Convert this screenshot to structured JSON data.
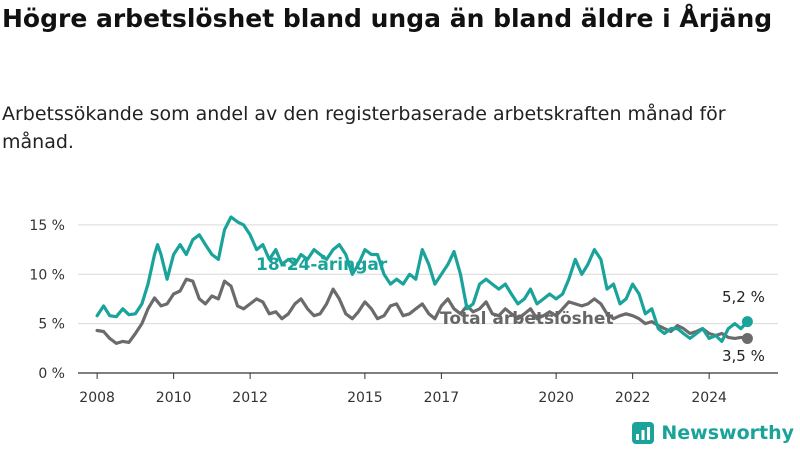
{
  "title": "Högre arbetslöshet bland unga än bland äldre i Årjäng",
  "subtitle": "Arbetssökande som andel av den registerbaserade arbetskraften månad för månad.",
  "brand": {
    "name": "Newsworthy",
    "icon": "newsworthy-logo-icon"
  },
  "colors": {
    "youth": "#1aa39a",
    "total": "#6b6b6b",
    "grid": "#d9d9d9",
    "brand": "#1aa39a"
  },
  "chart_data": {
    "type": "line",
    "x_unit": "year (decimal)",
    "y_unit": "%",
    "xlim": [
      2007.5,
      2025.8
    ],
    "ylim": [
      0,
      16
    ],
    "x_ticks": [
      2008,
      2010,
      2012,
      2015,
      2017,
      2020,
      2022,
      2024
    ],
    "x_tick_labels": [
      "2008",
      "2010",
      "2012",
      "2015",
      "2017",
      "2020",
      "2022",
      "2024"
    ],
    "y_ticks": [
      0,
      5,
      10,
      15
    ],
    "y_tick_labels": [
      "0 %",
      "5 %",
      "10 %",
      "15 %"
    ],
    "grid": "horizontal",
    "series": [
      {
        "name": "18-24-åringar",
        "end_label": "5,2 %",
        "points": [
          [
            2008.0,
            5.8
          ],
          [
            2008.17,
            6.8
          ],
          [
            2008.33,
            5.8
          ],
          [
            2008.5,
            5.7
          ],
          [
            2008.67,
            6.5
          ],
          [
            2008.83,
            5.9
          ],
          [
            2009.0,
            6.0
          ],
          [
            2009.17,
            7.0
          ],
          [
            2009.33,
            9.0
          ],
          [
            2009.5,
            12.0
          ],
          [
            2009.58,
            13.0
          ],
          [
            2009.67,
            12.0
          ],
          [
            2009.83,
            9.5
          ],
          [
            2010.0,
            12.0
          ],
          [
            2010.17,
            13.0
          ],
          [
            2010.33,
            12.0
          ],
          [
            2010.5,
            13.5
          ],
          [
            2010.67,
            14.0
          ],
          [
            2010.83,
            13.0
          ],
          [
            2011.0,
            12.0
          ],
          [
            2011.17,
            11.5
          ],
          [
            2011.33,
            14.5
          ],
          [
            2011.5,
            15.8
          ],
          [
            2011.67,
            15.3
          ],
          [
            2011.83,
            15.0
          ],
          [
            2012.0,
            14.0
          ],
          [
            2012.17,
            12.5
          ],
          [
            2012.33,
            13.0
          ],
          [
            2012.5,
            11.5
          ],
          [
            2012.67,
            12.5
          ],
          [
            2012.83,
            11.0
          ],
          [
            2013.0,
            11.5
          ],
          [
            2013.17,
            11.0
          ],
          [
            2013.33,
            12.0
          ],
          [
            2013.5,
            11.5
          ],
          [
            2013.67,
            12.5
          ],
          [
            2013.83,
            12.0
          ],
          [
            2014.0,
            11.5
          ],
          [
            2014.17,
            12.5
          ],
          [
            2014.33,
            13.0
          ],
          [
            2014.5,
            12.0
          ],
          [
            2014.67,
            10.0
          ],
          [
            2014.83,
            11.0
          ],
          [
            2015.0,
            12.5
          ],
          [
            2015.17,
            12.0
          ],
          [
            2015.33,
            12.0
          ],
          [
            2015.5,
            10.0
          ],
          [
            2015.67,
            9.0
          ],
          [
            2015.83,
            9.5
          ],
          [
            2016.0,
            9.0
          ],
          [
            2016.17,
            10.0
          ],
          [
            2016.33,
            9.5
          ],
          [
            2016.5,
            12.5
          ],
          [
            2016.67,
            11.0
          ],
          [
            2016.83,
            9.0
          ],
          [
            2017.0,
            10.0
          ],
          [
            2017.17,
            11.0
          ],
          [
            2017.33,
            12.3
          ],
          [
            2017.5,
            10.0
          ],
          [
            2017.67,
            6.5
          ],
          [
            2017.83,
            7.0
          ],
          [
            2018.0,
            9.0
          ],
          [
            2018.17,
            9.5
          ],
          [
            2018.33,
            9.0
          ],
          [
            2018.5,
            8.5
          ],
          [
            2018.67,
            9.0
          ],
          [
            2018.83,
            8.0
          ],
          [
            2019.0,
            7.0
          ],
          [
            2019.17,
            7.5
          ],
          [
            2019.33,
            8.5
          ],
          [
            2019.5,
            7.0
          ],
          [
            2019.67,
            7.5
          ],
          [
            2019.83,
            8.0
          ],
          [
            2020.0,
            7.5
          ],
          [
            2020.17,
            8.0
          ],
          [
            2020.33,
            9.5
          ],
          [
            2020.5,
            11.5
          ],
          [
            2020.67,
            10.0
          ],
          [
            2020.83,
            11.0
          ],
          [
            2021.0,
            12.5
          ],
          [
            2021.17,
            11.5
          ],
          [
            2021.33,
            8.5
          ],
          [
            2021.5,
            9.0
          ],
          [
            2021.67,
            7.0
          ],
          [
            2021.83,
            7.5
          ],
          [
            2022.0,
            9.0
          ],
          [
            2022.17,
            8.0
          ],
          [
            2022.33,
            6.0
          ],
          [
            2022.5,
            6.5
          ],
          [
            2022.67,
            4.5
          ],
          [
            2022.83,
            4.0
          ],
          [
            2023.0,
            4.5
          ],
          [
            2023.17,
            4.5
          ],
          [
            2023.33,
            4.0
          ],
          [
            2023.5,
            3.5
          ],
          [
            2023.67,
            4.0
          ],
          [
            2023.83,
            4.5
          ],
          [
            2024.0,
            3.5
          ],
          [
            2024.17,
            3.8
          ],
          [
            2024.33,
            3.2
          ],
          [
            2024.5,
            4.5
          ],
          [
            2024.67,
            5.0
          ],
          [
            2024.83,
            4.5
          ],
          [
            2025.0,
            5.2
          ]
        ]
      },
      {
        "name": "Total arbetslöshet",
        "end_label": "3,5 %",
        "points": [
          [
            2008.0,
            4.3
          ],
          [
            2008.17,
            4.2
          ],
          [
            2008.33,
            3.5
          ],
          [
            2008.5,
            3.0
          ],
          [
            2008.67,
            3.2
          ],
          [
            2008.83,
            3.1
          ],
          [
            2009.0,
            4.0
          ],
          [
            2009.17,
            5.0
          ],
          [
            2009.33,
            6.5
          ],
          [
            2009.5,
            7.6
          ],
          [
            2009.67,
            6.8
          ],
          [
            2009.83,
            7.0
          ],
          [
            2010.0,
            8.0
          ],
          [
            2010.17,
            8.3
          ],
          [
            2010.33,
            9.5
          ],
          [
            2010.5,
            9.3
          ],
          [
            2010.67,
            7.5
          ],
          [
            2010.83,
            7.0
          ],
          [
            2011.0,
            7.8
          ],
          [
            2011.17,
            7.5
          ],
          [
            2011.33,
            9.3
          ],
          [
            2011.5,
            8.8
          ],
          [
            2011.67,
            6.8
          ],
          [
            2011.83,
            6.5
          ],
          [
            2012.0,
            7.0
          ],
          [
            2012.17,
            7.5
          ],
          [
            2012.33,
            7.2
          ],
          [
            2012.5,
            6.0
          ],
          [
            2012.67,
            6.2
          ],
          [
            2012.83,
            5.5
          ],
          [
            2013.0,
            6.0
          ],
          [
            2013.17,
            7.0
          ],
          [
            2013.33,
            7.5
          ],
          [
            2013.5,
            6.5
          ],
          [
            2013.67,
            5.8
          ],
          [
            2013.83,
            6.0
          ],
          [
            2014.0,
            7.0
          ],
          [
            2014.17,
            8.5
          ],
          [
            2014.33,
            7.5
          ],
          [
            2014.5,
            6.0
          ],
          [
            2014.67,
            5.5
          ],
          [
            2014.83,
            6.2
          ],
          [
            2015.0,
            7.2
          ],
          [
            2015.17,
            6.5
          ],
          [
            2015.33,
            5.5
          ],
          [
            2015.5,
            5.8
          ],
          [
            2015.67,
            6.8
          ],
          [
            2015.83,
            7.0
          ],
          [
            2016.0,
            5.8
          ],
          [
            2016.17,
            6.0
          ],
          [
            2016.33,
            6.5
          ],
          [
            2016.5,
            7.0
          ],
          [
            2016.67,
            6.0
          ],
          [
            2016.83,
            5.5
          ],
          [
            2017.0,
            6.8
          ],
          [
            2017.17,
            7.5
          ],
          [
            2017.33,
            6.5
          ],
          [
            2017.5,
            6.0
          ],
          [
            2017.67,
            6.8
          ],
          [
            2017.83,
            6.2
          ],
          [
            2018.0,
            6.5
          ],
          [
            2018.17,
            7.2
          ],
          [
            2018.33,
            6.0
          ],
          [
            2018.5,
            5.8
          ],
          [
            2018.67,
            6.5
          ],
          [
            2018.83,
            6.0
          ],
          [
            2019.0,
            5.5
          ],
          [
            2019.17,
            6.0
          ],
          [
            2019.33,
            6.5
          ],
          [
            2019.5,
            5.5
          ],
          [
            2019.67,
            5.8
          ],
          [
            2019.83,
            6.2
          ],
          [
            2020.0,
            5.8
          ],
          [
            2020.17,
            6.5
          ],
          [
            2020.33,
            7.2
          ],
          [
            2020.5,
            7.0
          ],
          [
            2020.67,
            6.8
          ],
          [
            2020.83,
            7.0
          ],
          [
            2021.0,
            7.5
          ],
          [
            2021.17,
            7.0
          ],
          [
            2021.33,
            6.0
          ],
          [
            2021.5,
            5.5
          ],
          [
            2021.67,
            5.8
          ],
          [
            2021.83,
            6.0
          ],
          [
            2022.0,
            5.8
          ],
          [
            2022.17,
            5.5
          ],
          [
            2022.33,
            5.0
          ],
          [
            2022.5,
            5.2
          ],
          [
            2022.67,
            4.8
          ],
          [
            2022.83,
            4.5
          ],
          [
            2023.0,
            4.2
          ],
          [
            2023.17,
            4.8
          ],
          [
            2023.33,
            4.5
          ],
          [
            2023.5,
            4.0
          ],
          [
            2023.67,
            4.2
          ],
          [
            2023.83,
            4.5
          ],
          [
            2024.0,
            4.0
          ],
          [
            2024.17,
            3.8
          ],
          [
            2024.33,
            4.0
          ],
          [
            2024.5,
            3.6
          ],
          [
            2024.67,
            3.5
          ],
          [
            2024.83,
            3.6
          ],
          [
            2025.0,
            3.5
          ]
        ]
      }
    ]
  }
}
